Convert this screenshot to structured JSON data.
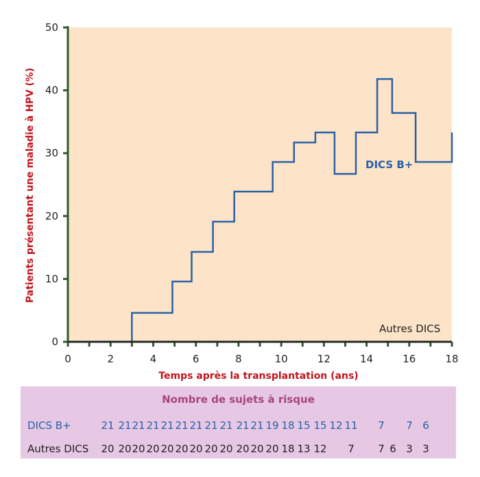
{
  "chart_data": {
    "type": "line",
    "step": true,
    "xlabel": "Temps après la transplantation (ans)",
    "ylabel": "Patients présentant une maladie à HPV (%)",
    "xlim": [
      0,
      18
    ],
    "ylim": [
      0,
      50
    ],
    "x_major_ticks": [
      0,
      2,
      4,
      6,
      8,
      10,
      12,
      14,
      16,
      18
    ],
    "y_ticks": [
      0,
      10,
      20,
      30,
      40,
      50
    ],
    "grid": false,
    "background_color": "#fde4c8",
    "series": [
      {
        "name": "DICS B+",
        "color": "#2860a8",
        "x": [
          0,
          3,
          4.9,
          5.8,
          6.8,
          7.8,
          9.6,
          10.6,
          11.6,
          12.5,
          13.5,
          14.5,
          15.2,
          16.3,
          18
        ],
        "y": [
          0,
          4.6,
          9.6,
          14.3,
          19.1,
          23.9,
          28.6,
          31.7,
          33.3,
          26.7,
          33.3,
          41.8,
          36.4,
          28.6,
          33.3
        ]
      },
      {
        "name": "Autres DICS",
        "color": "#222222",
        "x": [
          0,
          18
        ],
        "y": [
          0,
          0
        ]
      }
    ],
    "risk_table": {
      "title": "Nombre de sujets à risque",
      "rows": [
        {
          "label": "DICS B+",
          "color": "#2860a8",
          "values": [
            "21",
            "21",
            "21",
            "21",
            "21",
            "21",
            "21",
            "21",
            "21",
            "21",
            "21",
            "19",
            "18",
            "15",
            "15",
            "12",
            "11",
            "",
            "7",
            "",
            "7",
            "6"
          ]
        },
        {
          "label": "Autres DICS",
          "color": "#222222",
          "values": [
            "20",
            "20",
            "20",
            "20",
            "20",
            "20",
            "20",
            "20",
            "20",
            "20",
            "20",
            "20",
            "18",
            "13",
            "12",
            "",
            "7",
            "",
            "7",
            "6",
            "3",
            "3"
          ]
        }
      ]
    }
  }
}
